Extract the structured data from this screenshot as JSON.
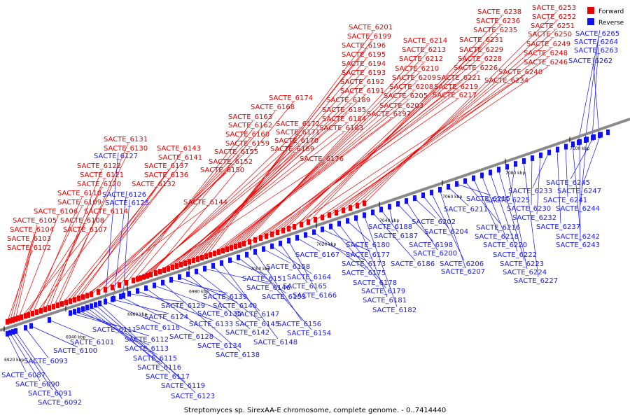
{
  "caption": "Streptomyces sp. SirexAA-E chromosome, complete genome. - 0..7414440",
  "legend": {
    "forward": {
      "label": "Forward",
      "color": "#ee0000"
    },
    "reverse": {
      "label": "Reverse",
      "color": "#1111ee"
    }
  },
  "axis_ticks": [
    "6920 kbp",
    "6940 kbp",
    "6960 kbp",
    "6980 kbp",
    "7000 kbp",
    "7020 kbp",
    "7040 kbp",
    "7060 kbp",
    "7080 kbp",
    "7100 kbp"
  ],
  "forward_genes": [
    "SACTE_6102",
    "SACTE_6103",
    "SACTE_6104",
    "SACTE_6105",
    "SACTE_6106",
    "SACTE_6107",
    "SACTE_6108",
    "SACTE_6109",
    "SACTE_6110",
    "SACTE_6114",
    "SACTE_6120",
    "SACTE_6121",
    "SACTE_6122",
    "SACTE_6130",
    "SACTE_6131",
    "SACTE_6132",
    "SACTE_6136",
    "SACTE_6137",
    "SACTE_6141",
    "SACTE_6143",
    "SACTE_6144",
    "SACTE_6150",
    "SACTE_6152",
    "SACTE_6155",
    "SACTE_6159",
    "SACTE_6160",
    "SACTE_6162",
    "SACTE_6163",
    "SACTE_6168",
    "SACTE_6169",
    "SACTE_6170",
    "SACTE_6171",
    "SACTE_6172",
    "SACTE_6174",
    "SACTE_6176",
    "SACTE_6183",
    "SACTE_6184",
    "SACTE_6185",
    "SACTE_6189",
    "SACTE_6191",
    "SACTE_6192",
    "SACTE_6193",
    "SACTE_6194",
    "SACTE_6195",
    "SACTE_6196",
    "SACTE_6199",
    "SACTE_6201",
    "SACTE_6197",
    "SACTE_6203",
    "SACTE_6205",
    "SACTE_6208",
    "SACTE_6209",
    "SACTE_6210",
    "SACTE_6212",
    "SACTE_6213",
    "SACTE_6214",
    "SACTE_6217",
    "SACTE_6219",
    "SACTE_6221",
    "SACTE_6226",
    "SACTE_6228",
    "SACTE_6229",
    "SACTE_6231",
    "SACTE_6234",
    "SACTE_6235",
    "SACTE_6236",
    "SACTE_6238",
    "SACTE_6240",
    "SACTE_6246",
    "SACTE_6248",
    "SACTE_6249",
    "SACTE_6250",
    "SACTE_6251",
    "SACTE_6252",
    "SACTE_6253"
  ],
  "reverse_genes": [
    "SACTE_6127",
    "SACTE_6126",
    "SACTE_6125",
    "SACTE_6265",
    "SACTE_6264",
    "SACTE_6263",
    "SACTE_6262",
    "SACTE_6093",
    "SACTE_6087",
    "SACTE_6090",
    "SACTE_6091",
    "SACTE_6092",
    "SACTE_6100",
    "SACTE_6101",
    "SACTE_6111",
    "SACTE_6112",
    "SACTE_6113",
    "SACTE_6115",
    "SACTE_6116",
    "SACTE_6117",
    "SACTE_6119",
    "SACTE_6123",
    "SACTE_6118",
    "SACTE_6124",
    "SACTE_6128",
    "SACTE_6129",
    "SACTE_6133",
    "SACTE_6134",
    "SACTE_6135",
    "SACTE_6138",
    "SACTE_6139",
    "SACTE_6140",
    "SACTE_6142",
    "SACTE_6145",
    "SACTE_6146",
    "SACTE_6147",
    "SACTE_6148",
    "SACTE_6151",
    "SACTE_6153",
    "SACTE_6154",
    "SACTE_6156",
    "SACTE_6158",
    "SACTE_6164",
    "SACTE_6165",
    "SACTE_6166",
    "SACTE_6167",
    "SACTE_6173",
    "SACTE_6175",
    "SACTE_6177",
    "SACTE_6178",
    "SACTE_6179",
    "SACTE_6180",
    "SACTE_6181",
    "SACTE_6182",
    "SACTE_6186",
    "SACTE_6187",
    "SACTE_6188",
    "SACTE_6198",
    "SACTE_6200",
    "SACTE_6202",
    "SACTE_6204",
    "SACTE_6206",
    "SACTE_6207",
    "SACTE_6211",
    "SACTE_6215",
    "SACTE_6216",
    "SACTE_6218",
    "SACTE_6220",
    "SACTE_6222",
    "SACTE_6223",
    "SACTE_6224",
    "SACTE_6225",
    "SACTE_6227",
    "SACTE_6230",
    "SACTE_6232",
    "SACTE_6233",
    "SACTE_6237",
    "SACTE_6241",
    "SACTE_6242",
    "SACTE_6243",
    "SACTE_6244",
    "SACTE_6245",
    "SACTE_6247"
  ]
}
